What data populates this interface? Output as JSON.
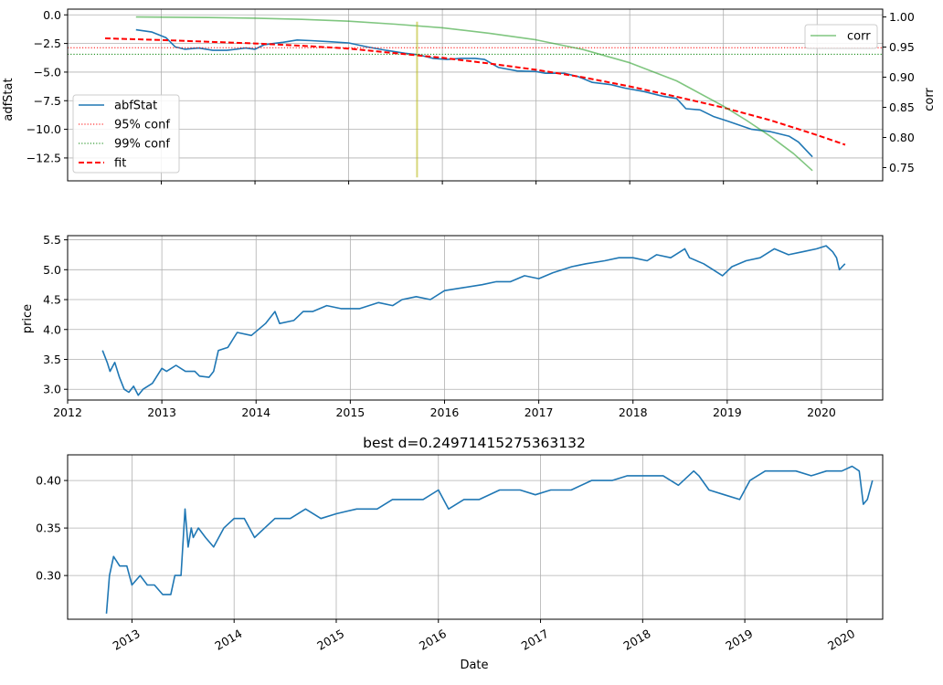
{
  "chart_data": [
    {
      "type": "line",
      "ylabel": "adfStat",
      "ylabel_right": "corr",
      "x_kind": "numeric",
      "xlim": [
        2012.0,
        2020.7
      ],
      "x_ticks": [
        2013,
        2014,
        2015,
        2016,
        2017,
        2018,
        2019,
        2020
      ],
      "ylim": [
        -14.5,
        0.5
      ],
      "yticks": [
        0.0,
        -2.5,
        -5.0,
        -7.5,
        -10.0,
        -12.5
      ],
      "ytick_labels": [
        "0.0",
        "−2.5",
        "−5.0",
        "−7.5",
        "−10.0",
        "−12.5"
      ],
      "ylim_right": [
        0.728,
        1.013
      ],
      "yticks_right": [
        1.0,
        0.95,
        0.9,
        0.85,
        0.8,
        0.75
      ],
      "ytick_right_labels": [
        "1.00",
        "0.95",
        "0.90",
        "0.85",
        "0.80",
        "0.75"
      ],
      "grid": true,
      "legends": [
        {
          "location": "center-left",
          "entries": [
            "abfStat",
            "95% conf",
            "99% conf",
            "fit"
          ]
        },
        {
          "location": "top-right",
          "entries": [
            "corr"
          ]
        }
      ],
      "series": [
        {
          "name": "abfStat",
          "axis": "left",
          "color": "#1f77b4",
          "style": "solid",
          "x": [
            2012.73,
            2012.9,
            2013.05,
            2013.15,
            2013.25,
            2013.4,
            2013.55,
            2013.7,
            2013.9,
            2014.0,
            2014.1,
            2014.2,
            2014.3,
            2014.45,
            2014.6,
            2014.8,
            2015.0,
            2015.2,
            2015.4,
            2015.6,
            2015.75,
            2015.9,
            2016.05,
            2016.2,
            2016.35,
            2016.45,
            2016.6,
            2016.8,
            2017.0,
            2017.1,
            2017.3,
            2017.45,
            2017.6,
            2017.8,
            2017.95,
            2018.15,
            2018.35,
            2018.5,
            2018.6,
            2018.75,
            2018.9,
            2019.05,
            2019.3,
            2019.5,
            2019.7,
            2019.8,
            2019.95
          ],
          "y": [
            -1.3,
            -1.5,
            -2.0,
            -2.8,
            -3.0,
            -2.9,
            -3.1,
            -3.1,
            -2.9,
            -3.0,
            -2.6,
            -2.5,
            -2.4,
            -2.2,
            -2.25,
            -2.35,
            -2.45,
            -2.8,
            -3.1,
            -3.35,
            -3.5,
            -3.8,
            -3.9,
            -3.8,
            -3.8,
            -3.9,
            -4.6,
            -4.9,
            -4.95,
            -5.1,
            -5.1,
            -5.4,
            -5.9,
            -6.1,
            -6.4,
            -6.7,
            -7.1,
            -7.3,
            -8.2,
            -8.3,
            -8.9,
            -9.3,
            -10.0,
            -10.2,
            -10.6,
            -11.1,
            -12.4
          ]
        },
        {
          "name": "95% conf",
          "axis": "left",
          "color": "#ff0000",
          "style": "dotted",
          "y_const": -2.87
        },
        {
          "name": "99% conf",
          "axis": "left",
          "color": "#008000",
          "style": "dotted",
          "y_const": -3.44
        },
        {
          "name": "fit",
          "axis": "left",
          "color": "#ff0000",
          "style": "dashed",
          "x": [
            2012.4,
            2013.0,
            2013.5,
            2014.0,
            2014.5,
            2015.0,
            2015.5,
            2016.0,
            2016.5,
            2017.0,
            2017.5,
            2018.0,
            2018.5,
            2019.0,
            2019.5,
            2020.0,
            2020.3
          ],
          "y": [
            -2.05,
            -2.2,
            -2.35,
            -2.5,
            -2.7,
            -2.95,
            -3.35,
            -3.75,
            -4.25,
            -4.8,
            -5.45,
            -6.25,
            -7.15,
            -8.1,
            -9.2,
            -10.5,
            -11.35
          ]
        },
        {
          "name": "corr",
          "axis": "right",
          "color": "#2ca02c",
          "style": "solid",
          "opacity": 0.6,
          "x": [
            2012.73,
            2013.5,
            2014.0,
            2014.5,
            2015.0,
            2015.5,
            2016.0,
            2016.5,
            2017.0,
            2017.5,
            2018.0,
            2018.5,
            2019.0,
            2019.25,
            2019.5,
            2019.75,
            2019.95
          ],
          "y": [
            1.0,
            0.999,
            0.998,
            0.996,
            0.993,
            0.988,
            0.982,
            0.973,
            0.962,
            0.946,
            0.924,
            0.894,
            0.852,
            0.828,
            0.802,
            0.773,
            0.745
          ]
        },
        {
          "name": "",
          "axis": "left",
          "color": "#bcbd22",
          "style": "solid",
          "opacity": 0.6,
          "x_const": 2015.73,
          "y_range": [
            -0.6,
            -14.2
          ]
        }
      ]
    },
    {
      "type": "line",
      "ylabel": "price",
      "x_kind": "numeric",
      "xlim": [
        2012.0,
        2020.65
      ],
      "x_ticks": [
        2012,
        2013,
        2014,
        2015,
        2016,
        2017,
        2018,
        2019,
        2020
      ],
      "x_tick_labels": [
        "2012",
        "2013",
        "2014",
        "2015",
        "2016",
        "2017",
        "2018",
        "2019",
        "2020"
      ],
      "ylim": [
        2.82,
        5.57
      ],
      "yticks": [
        3.0,
        3.5,
        4.0,
        4.5,
        5.0,
        5.5
      ],
      "ytick_labels": [
        "3.0",
        "3.5",
        "4.0",
        "4.5",
        "5.0",
        "5.5"
      ],
      "grid": true,
      "series": [
        {
          "color": "#1f77b4",
          "x": [
            2012.37,
            2012.42,
            2012.45,
            2012.5,
            2012.55,
            2012.6,
            2012.65,
            2012.7,
            2012.75,
            2012.8,
            2012.9,
            2013.0,
            2013.05,
            2013.15,
            2013.25,
            2013.35,
            2013.4,
            2013.5,
            2013.55,
            2013.6,
            2013.7,
            2013.8,
            2013.95,
            2014.1,
            2014.2,
            2014.25,
            2014.4,
            2014.5,
            2014.6,
            2014.75,
            2014.9,
            2015.1,
            2015.3,
            2015.45,
            2015.55,
            2015.7,
            2015.85,
            2016.0,
            2016.2,
            2016.4,
            2016.55,
            2016.7,
            2016.85,
            2017.0,
            2017.15,
            2017.35,
            2017.5,
            2017.7,
            2017.85,
            2018.0,
            2018.15,
            2018.25,
            2018.4,
            2018.5,
            2018.55,
            2018.6,
            2018.75,
            2018.85,
            2018.95,
            2019.05,
            2019.2,
            2019.35,
            2019.5,
            2019.65,
            2019.8,
            2019.95,
            2020.05,
            2020.12,
            2020.16,
            2020.19,
            2020.22,
            2020.25
          ],
          "y": [
            3.65,
            3.45,
            3.3,
            3.45,
            3.2,
            3.0,
            2.95,
            3.05,
            2.9,
            3.0,
            3.1,
            3.35,
            3.3,
            3.4,
            3.3,
            3.3,
            3.22,
            3.2,
            3.3,
            3.65,
            3.7,
            3.95,
            3.9,
            4.1,
            4.3,
            4.1,
            4.15,
            4.3,
            4.3,
            4.4,
            4.35,
            4.35,
            4.45,
            4.4,
            4.5,
            4.55,
            4.5,
            4.65,
            4.7,
            4.75,
            4.8,
            4.8,
            4.9,
            4.85,
            4.95,
            5.05,
            5.1,
            5.15,
            5.2,
            5.2,
            5.15,
            5.25,
            5.2,
            5.3,
            5.35,
            5.2,
            5.1,
            5.0,
            4.9,
            5.05,
            5.15,
            5.2,
            5.35,
            5.25,
            5.3,
            5.35,
            5.4,
            5.3,
            5.2,
            5.0,
            5.05,
            5.1
          ]
        }
      ]
    },
    {
      "type": "line",
      "title": "best d=0.24971415275363132",
      "xlabel": "Date",
      "x_kind": "numeric",
      "xlim": [
        2012.37,
        2020.35
      ],
      "x_ticks": [
        2013,
        2014,
        2015,
        2016,
        2017,
        2018,
        2019,
        2020
      ],
      "x_tick_labels": [
        "2013",
        "2014",
        "2015",
        "2016",
        "2017",
        "2018",
        "2019",
        "2020"
      ],
      "ylim": [
        0.254,
        0.427
      ],
      "yticks": [
        0.3,
        0.35,
        0.4
      ],
      "ytick_labels": [
        "0.30",
        "0.35",
        "0.40"
      ],
      "grid": true,
      "series": [
        {
          "color": "#1f77b4",
          "x": [
            2012.75,
            2012.78,
            2012.82,
            2012.88,
            2012.95,
            2013.0,
            2013.08,
            2013.15,
            2013.22,
            2013.3,
            2013.38,
            2013.42,
            2013.48,
            2013.52,
            2013.55,
            2013.58,
            2013.6,
            2013.65,
            2013.72,
            2013.8,
            2013.9,
            2014.0,
            2014.1,
            2014.2,
            2014.3,
            2014.4,
            2014.55,
            2014.7,
            2014.85,
            2015.0,
            2015.2,
            2015.4,
            2015.55,
            2015.7,
            2015.85,
            2016.0,
            2016.1,
            2016.25,
            2016.4,
            2016.6,
            2016.8,
            2016.95,
            2017.1,
            2017.3,
            2017.5,
            2017.7,
            2017.85,
            2018.0,
            2018.2,
            2018.35,
            2018.5,
            2018.55,
            2018.65,
            2018.8,
            2018.95,
            2019.05,
            2019.2,
            2019.35,
            2019.5,
            2019.65,
            2019.8,
            2019.95,
            2020.05,
            2020.12,
            2020.16,
            2020.2,
            2020.25
          ],
          "y": [
            0.26,
            0.3,
            0.32,
            0.31,
            0.31,
            0.29,
            0.3,
            0.29,
            0.29,
            0.28,
            0.28,
            0.3,
            0.3,
            0.37,
            0.33,
            0.35,
            0.34,
            0.35,
            0.34,
            0.33,
            0.35,
            0.36,
            0.36,
            0.34,
            0.35,
            0.36,
            0.36,
            0.37,
            0.36,
            0.365,
            0.37,
            0.37,
            0.38,
            0.38,
            0.38,
            0.39,
            0.37,
            0.38,
            0.38,
            0.39,
            0.39,
            0.385,
            0.39,
            0.39,
            0.4,
            0.4,
            0.405,
            0.405,
            0.405,
            0.395,
            0.41,
            0.405,
            0.39,
            0.385,
            0.38,
            0.4,
            0.41,
            0.41,
            0.41,
            0.405,
            0.41,
            0.41,
            0.415,
            0.41,
            0.375,
            0.38,
            0.4
          ]
        }
      ]
    }
  ]
}
